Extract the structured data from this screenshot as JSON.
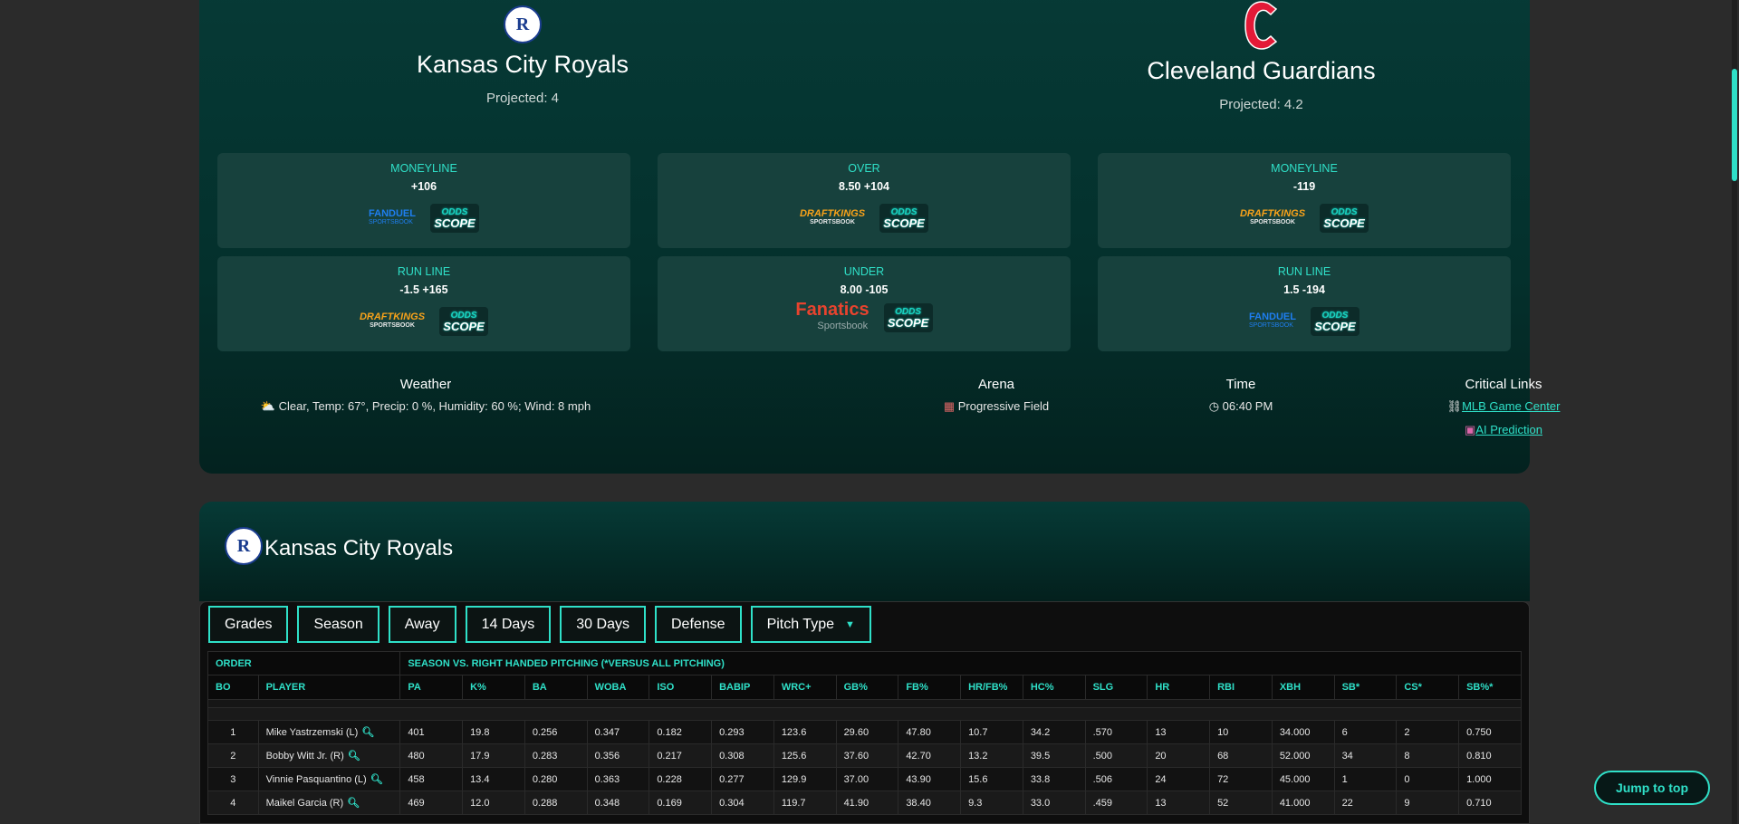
{
  "game": {
    "away": {
      "name": "Kansas City Royals",
      "projected": "Projected: 4",
      "logo_letter": "R"
    },
    "home": {
      "name": "Cleveland Guardians",
      "projected": "Projected: 4.2"
    },
    "odds": [
      {
        "label": "MONEYLINE",
        "value": "+106",
        "books": [
          "FanDuel",
          "OddsScope"
        ]
      },
      {
        "label": "OVER",
        "value": "8.50 +104",
        "books": [
          "DraftKings",
          "OddsScope"
        ]
      },
      {
        "label": "MONEYLINE",
        "value": "-119",
        "books": [
          "DraftKings",
          "OddsScope"
        ]
      },
      {
        "label": "RUN LINE",
        "value": "-1.5 +165",
        "books": [
          "DraftKings",
          "OddsScope"
        ]
      },
      {
        "label": "UNDER",
        "value": "8.00 -105",
        "books": [
          "Fanatics",
          "OddsScope"
        ]
      },
      {
        "label": "RUN LINE",
        "value": "1.5 -194",
        "books": [
          "FanDuel",
          "OddsScope"
        ]
      }
    ],
    "weather": {
      "heading": "Weather",
      "icon": "sun-cloud-icon",
      "text": "Clear, Temp: 67°, Precip: 0 %, Humidity: 60 %; Wind: 8 mph"
    },
    "arena": {
      "heading": "Arena",
      "icon": "stadium-icon",
      "text": "Progressive Field"
    },
    "time": {
      "heading": "Time",
      "icon": "clock-icon",
      "text": "06:40 PM"
    },
    "links": {
      "heading": "Critical Links",
      "mlb": "MLB Game Center",
      "ai": "AI Prediction"
    }
  },
  "books": {
    "fanduel": {
      "name": "FANDUEL",
      "sub": "SPORTSBOOK"
    },
    "draftkings": {
      "name": "DRAFTKINGS",
      "sub": "SPORTSBOOK"
    },
    "fanatics": {
      "name": "Fanatics",
      "sub": "Sportsbook"
    },
    "oddsscope": {
      "top": "ODDS",
      "bottom": "SCOPE"
    }
  },
  "roster": {
    "team": "Kansas City Royals",
    "tabs": [
      "Grades",
      "Season",
      "Away",
      "14 Days",
      "30 Days",
      "Defense",
      "Pitch Type"
    ],
    "group_order": "ORDER",
    "group_stats": "SEASON VS. RIGHT HANDED PITCHING (*VERSUS ALL PITCHING)",
    "columns": [
      "BO",
      "PLAYER",
      "PA",
      "K%",
      "BA",
      "WOBA",
      "ISO",
      "BABIP",
      "WRC+",
      "GB%",
      "FB%",
      "HR/FB%",
      "HC%",
      "SLG",
      "HR",
      "RBI",
      "XBH",
      "SB*",
      "CS*",
      "SB%*"
    ],
    "rows": [
      [
        "1",
        "Mike Yastrzemski (L)",
        "401",
        "19.8",
        "0.256",
        "0.347",
        "0.182",
        "0.293",
        "123.6",
        "29.60",
        "47.80",
        "10.7",
        "34.2",
        ".570",
        "13",
        "10",
        "34.000",
        "6",
        "2",
        "0.750"
      ],
      [
        "2",
        "Bobby Witt Jr. (R)",
        "480",
        "17.9",
        "0.283",
        "0.356",
        "0.217",
        "0.308",
        "125.6",
        "37.60",
        "42.70",
        "13.2",
        "39.5",
        ".500",
        "20",
        "68",
        "52.000",
        "34",
        "8",
        "0.810"
      ],
      [
        "3",
        "Vinnie Pasquantino (L)",
        "458",
        "13.4",
        "0.280",
        "0.363",
        "0.228",
        "0.277",
        "129.9",
        "37.00",
        "43.90",
        "15.6",
        "33.8",
        ".506",
        "24",
        "72",
        "45.000",
        "1",
        "0",
        "1.000"
      ],
      [
        "4",
        "Maikel Garcia (R)",
        "469",
        "12.0",
        "0.288",
        "0.348",
        "0.169",
        "0.304",
        "119.7",
        "41.90",
        "38.40",
        "9.3",
        "33.0",
        ".459",
        "13",
        "52",
        "41.000",
        "22",
        "9",
        "0.710"
      ]
    ]
  },
  "jump_label": "Jump to top",
  "colors": {
    "accent": "#2fe0c8",
    "card": "#063a36",
    "guardians_red": "#e31937",
    "royals_blue": "#1b3d8f"
  }
}
